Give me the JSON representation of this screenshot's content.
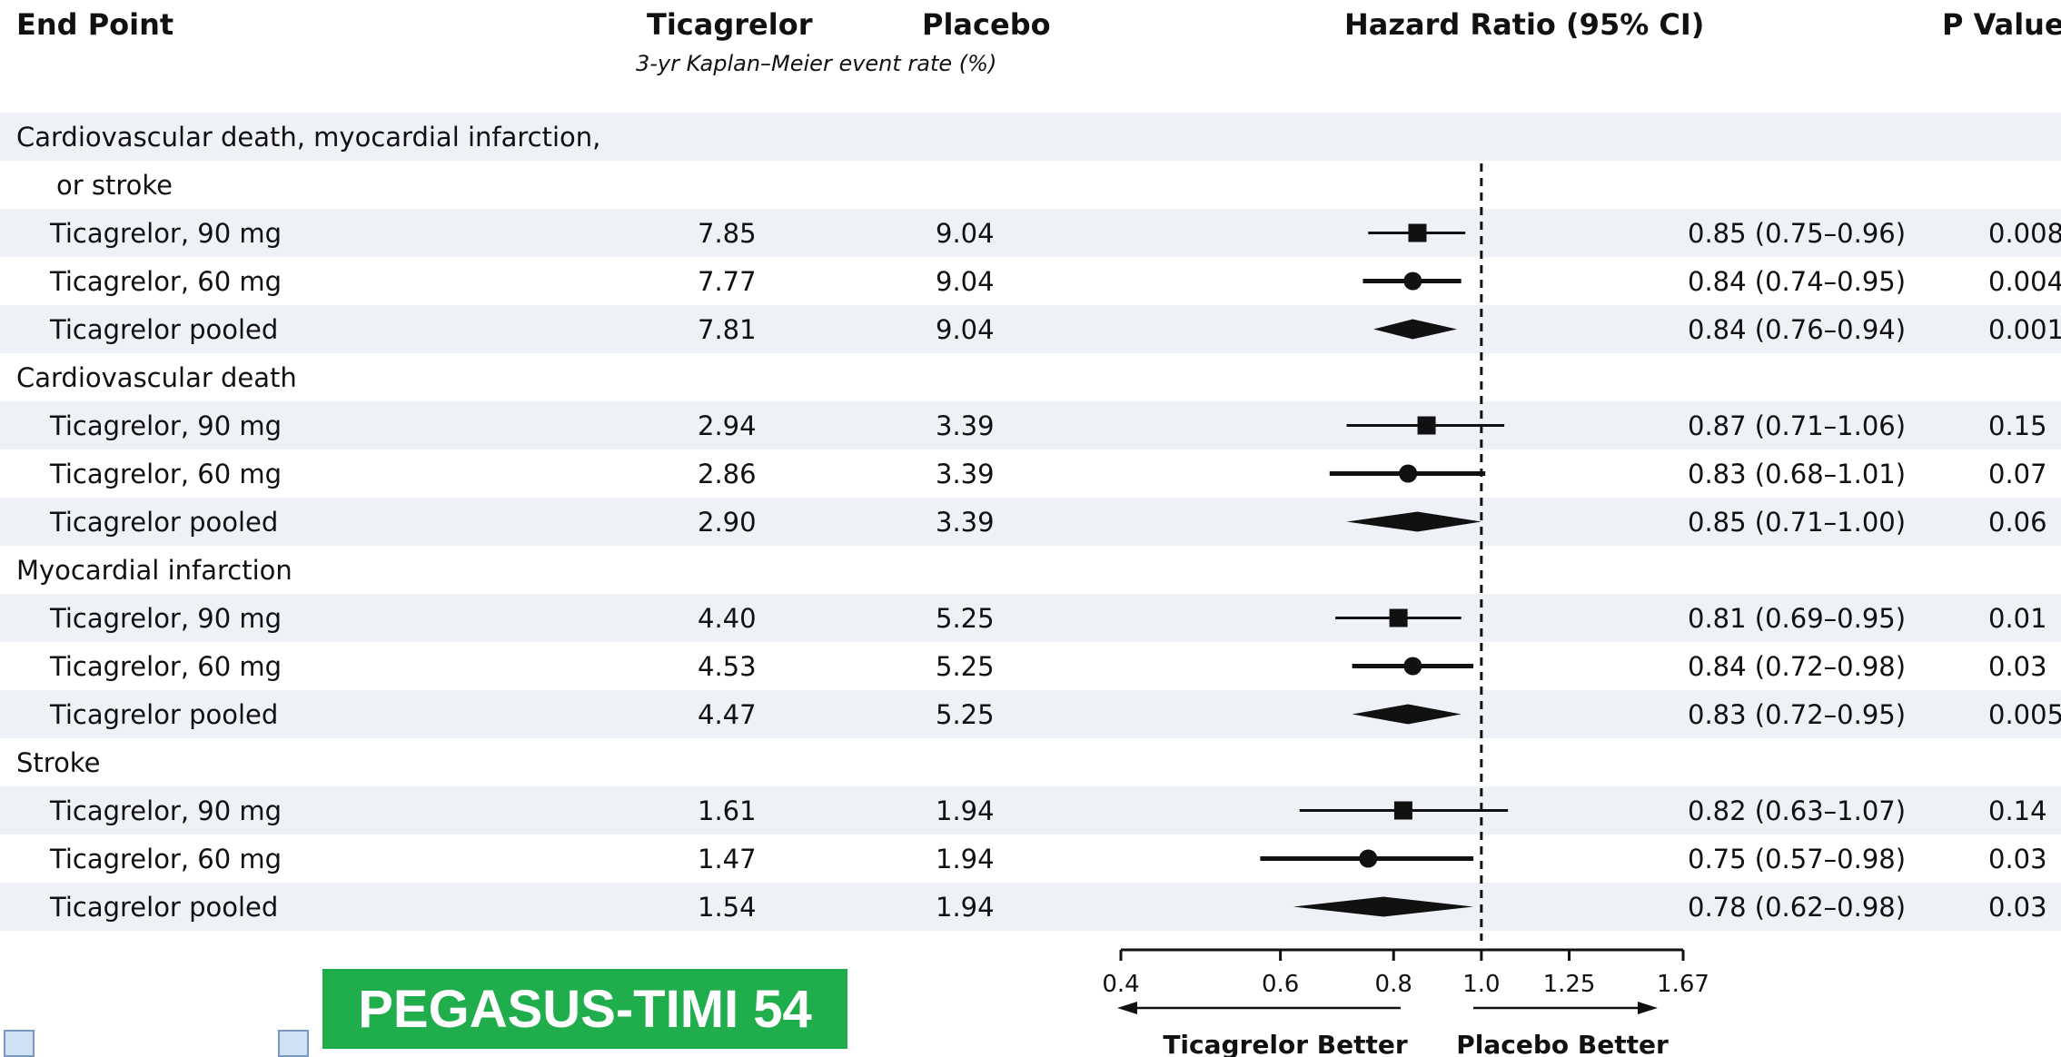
{
  "headers": {
    "end_point": "End Point",
    "ticagrelor": "Ticagrelor",
    "placebo": "Placebo",
    "event_rate_note": "3-yr Kaplan–Meier event rate (%)",
    "hazard_ratio": "Hazard Ratio (95% CI)",
    "p_value": "P Value"
  },
  "badge": "PEGASUS-TIMI 54",
  "axis_labels": {
    "ticagrelor_better": "Ticagrelor Better",
    "placebo_better": "Placebo Better"
  },
  "chart_data": {
    "type": "forest",
    "x_label": "Hazard Ratio (95% CI)",
    "x_scale": "log",
    "x_ticks": [
      0.4,
      0.6,
      0.8,
      1.0,
      1.25,
      1.67
    ],
    "x_tick_labels": [
      "0.4",
      "0.6",
      "0.8",
      "1.0",
      "1.25",
      "1.67"
    ],
    "reference_line": 1.0,
    "groups": [
      {
        "name_lines": [
          "Cardiovascular death, myocardial infarction,",
          "or stroke"
        ],
        "rows": [
          {
            "label": "Ticagrelor, 90 mg",
            "ticagrelor": "7.85",
            "placebo": "9.04",
            "hr": 0.85,
            "lo": 0.75,
            "hi": 0.96,
            "hr_text": "0.85 (0.75–0.96)",
            "p": "0.008",
            "marker": "square"
          },
          {
            "label": "Ticagrelor, 60 mg",
            "ticagrelor": "7.77",
            "placebo": "9.04",
            "hr": 0.84,
            "lo": 0.74,
            "hi": 0.95,
            "hr_text": "0.84 (0.74–0.95)",
            "p": "0.004",
            "marker": "circle"
          },
          {
            "label": "Ticagrelor pooled",
            "ticagrelor": "7.81",
            "placebo": "9.04",
            "hr": 0.84,
            "lo": 0.76,
            "hi": 0.94,
            "hr_text": "0.84 (0.76–0.94)",
            "p": "0.001",
            "marker": "diamond"
          }
        ]
      },
      {
        "name_lines": [
          "Cardiovascular death"
        ],
        "rows": [
          {
            "label": "Ticagrelor, 90 mg",
            "ticagrelor": "2.94",
            "placebo": "3.39",
            "hr": 0.87,
            "lo": 0.71,
            "hi": 1.06,
            "hr_text": "0.87 (0.71–1.06)",
            "p": "0.15",
            "marker": "square"
          },
          {
            "label": "Ticagrelor, 60 mg",
            "ticagrelor": "2.86",
            "placebo": "3.39",
            "hr": 0.83,
            "lo": 0.68,
            "hi": 1.01,
            "hr_text": "0.83 (0.68–1.01)",
            "p": "0.07",
            "marker": "circle"
          },
          {
            "label": "Ticagrelor pooled",
            "ticagrelor": "2.90",
            "placebo": "3.39",
            "hr": 0.85,
            "lo": 0.71,
            "hi": 1.0,
            "hr_text": "0.85 (0.71–1.00)",
            "p": "0.06",
            "marker": "diamond"
          }
        ]
      },
      {
        "name_lines": [
          "Myocardial infarction"
        ],
        "rows": [
          {
            "label": "Ticagrelor, 90 mg",
            "ticagrelor": "4.40",
            "placebo": "5.25",
            "hr": 0.81,
            "lo": 0.69,
            "hi": 0.95,
            "hr_text": "0.81 (0.69–0.95)",
            "p": "0.01",
            "marker": "square"
          },
          {
            "label": "Ticagrelor, 60 mg",
            "ticagrelor": "4.53",
            "placebo": "5.25",
            "hr": 0.84,
            "lo": 0.72,
            "hi": 0.98,
            "hr_text": "0.84 (0.72–0.98)",
            "p": "0.03",
            "marker": "circle"
          },
          {
            "label": "Ticagrelor pooled",
            "ticagrelor": "4.47",
            "placebo": "5.25",
            "hr": 0.83,
            "lo": 0.72,
            "hi": 0.95,
            "hr_text": "0.83 (0.72–0.95)",
            "p": "0.005",
            "marker": "diamond"
          }
        ]
      },
      {
        "name_lines": [
          "Stroke"
        ],
        "rows": [
          {
            "label": "Ticagrelor, 90 mg",
            "ticagrelor": "1.61",
            "placebo": "1.94",
            "hr": 0.82,
            "lo": 0.63,
            "hi": 1.07,
            "hr_text": "0.82 (0.63–1.07)",
            "p": "0.14",
            "marker": "square"
          },
          {
            "label": "Ticagrelor, 60 mg",
            "ticagrelor": "1.47",
            "placebo": "1.94",
            "hr": 0.75,
            "lo": 0.57,
            "hi": 0.98,
            "hr_text": "0.75 (0.57–0.98)",
            "p": "0.03",
            "marker": "circle"
          },
          {
            "label": "Ticagrelor pooled",
            "ticagrelor": "1.54",
            "placebo": "1.94",
            "hr": 0.78,
            "lo": 0.62,
            "hi": 0.98,
            "hr_text": "0.78 (0.62–0.98)",
            "p": "0.03",
            "marker": "diamond"
          }
        ]
      }
    ]
  }
}
